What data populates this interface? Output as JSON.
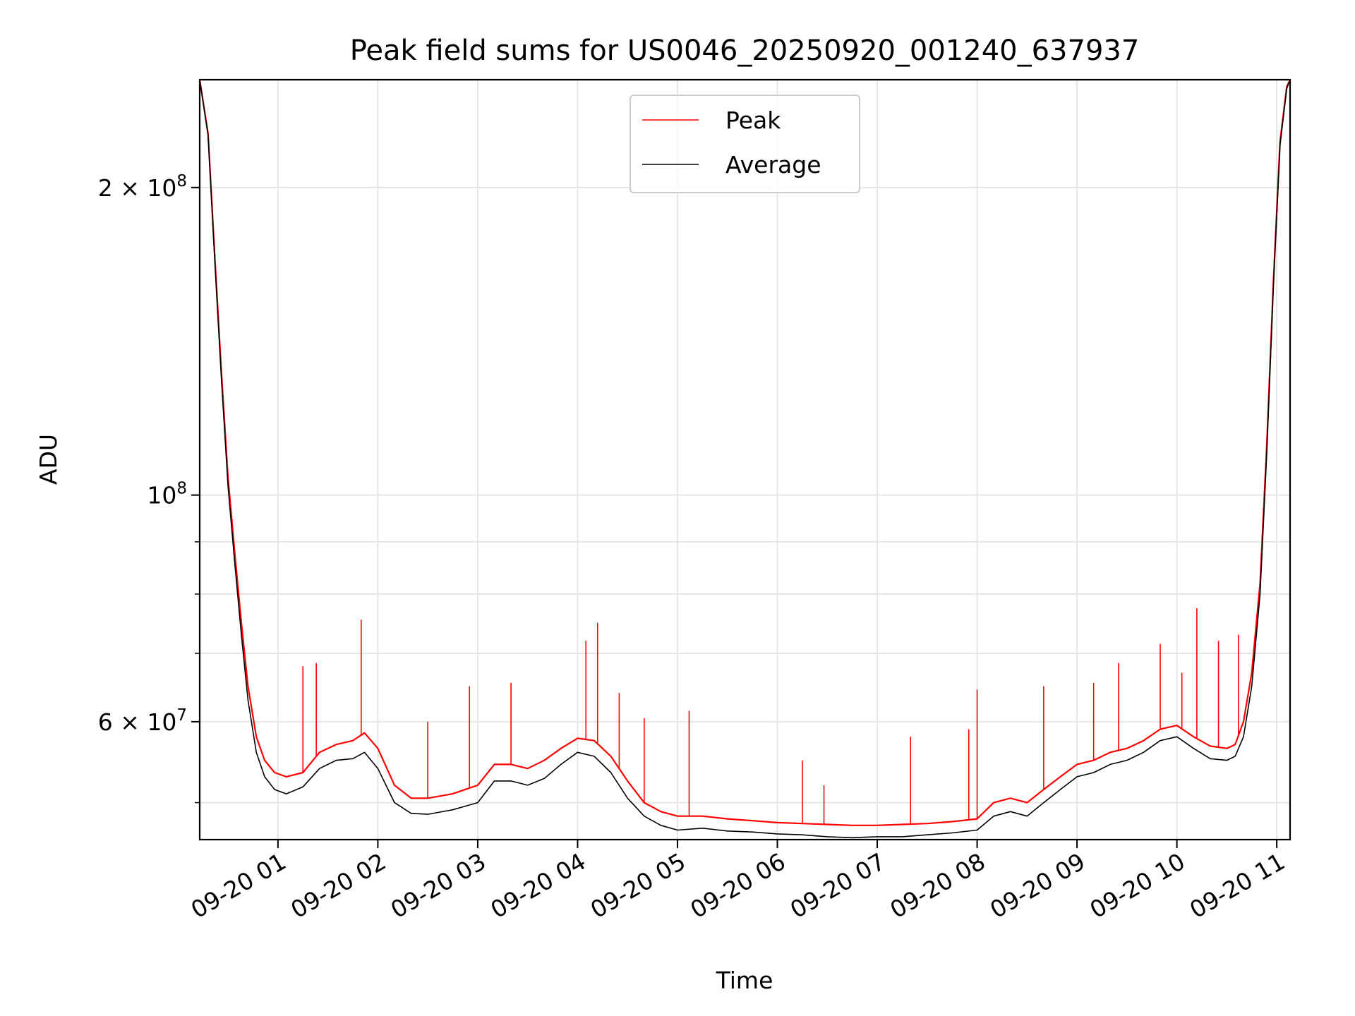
{
  "chart_data": {
    "type": "line",
    "title": "Peak field sums for US0046_20250920_001240_637937",
    "xlabel": "Time",
    "ylabel": "ADU",
    "y_scale": "log",
    "x_range": [
      "2025-09-20 00:13",
      "2025-09-20 11:08"
    ],
    "ylim": [
      46000000,
      255000000
    ],
    "x_ticks": [
      {
        "t": "2025-09-20 01:00",
        "label": "09-20 01"
      },
      {
        "t": "2025-09-20 02:00",
        "label": "09-20 02"
      },
      {
        "t": "2025-09-20 03:00",
        "label": "09-20 03"
      },
      {
        "t": "2025-09-20 04:00",
        "label": "09-20 04"
      },
      {
        "t": "2025-09-20 05:00",
        "label": "09-20 05"
      },
      {
        "t": "2025-09-20 06:00",
        "label": "09-20 06"
      },
      {
        "t": "2025-09-20 07:00",
        "label": "09-20 07"
      },
      {
        "t": "2025-09-20 08:00",
        "label": "09-20 08"
      },
      {
        "t": "2025-09-20 09:00",
        "label": "09-20 09"
      },
      {
        "t": "2025-09-20 10:00",
        "label": "09-20 10"
      },
      {
        "t": "2025-09-20 11:00",
        "label": "09-20 11"
      }
    ],
    "y_ticks": [
      {
        "v": 60000000,
        "base": "6 × 10",
        "exp": "7"
      },
      {
        "v": 100000000,
        "base": "10",
        "exp": "8"
      },
      {
        "v": 200000000,
        "base": "2 × 10",
        "exp": "8"
      }
    ],
    "y_minor_ticks": [
      50000000,
      70000000,
      80000000,
      90000000
    ],
    "grid": true,
    "legend_position": "top-center",
    "series": [
      {
        "name": "Average",
        "color": "#000000",
        "x": [
          "2025-09-20 00:13",
          "2025-09-20 00:18",
          "2025-09-20 00:22",
          "2025-09-20 00:26",
          "2025-09-20 00:30",
          "2025-09-20 00:34",
          "2025-09-20 00:38",
          "2025-09-20 00:42",
          "2025-09-20 00:47",
          "2025-09-20 00:52",
          "2025-09-20 00:58",
          "2025-09-20 01:05",
          "2025-09-20 01:15",
          "2025-09-20 01:25",
          "2025-09-20 01:35",
          "2025-09-20 01:45",
          "2025-09-20 01:52",
          "2025-09-20 02:00",
          "2025-09-20 02:10",
          "2025-09-20 02:20",
          "2025-09-20 02:30",
          "2025-09-20 02:45",
          "2025-09-20 03:00",
          "2025-09-20 03:10",
          "2025-09-20 03:20",
          "2025-09-20 03:30",
          "2025-09-20 03:40",
          "2025-09-20 03:50",
          "2025-09-20 04:00",
          "2025-09-20 04:10",
          "2025-09-20 04:20",
          "2025-09-20 04:30",
          "2025-09-20 04:40",
          "2025-09-20 04:50",
          "2025-09-20 05:00",
          "2025-09-20 05:15",
          "2025-09-20 05:30",
          "2025-09-20 05:45",
          "2025-09-20 06:00",
          "2025-09-20 06:15",
          "2025-09-20 06:30",
          "2025-09-20 06:45",
          "2025-09-20 07:00",
          "2025-09-20 07:15",
          "2025-09-20 07:30",
          "2025-09-20 07:45",
          "2025-09-20 08:00",
          "2025-09-20 08:10",
          "2025-09-20 08:20",
          "2025-09-20 08:30",
          "2025-09-20 08:40",
          "2025-09-20 08:50",
          "2025-09-20 09:00",
          "2025-09-20 09:10",
          "2025-09-20 09:20",
          "2025-09-20 09:30",
          "2025-09-20 09:40",
          "2025-09-20 09:50",
          "2025-09-20 10:00",
          "2025-09-20 10:10",
          "2025-09-20 10:20",
          "2025-09-20 10:30",
          "2025-09-20 10:35",
          "2025-09-20 10:40",
          "2025-09-20 10:45",
          "2025-09-20 10:50",
          "2025-09-20 10:54",
          "2025-09-20 10:58",
          "2025-09-20 11:02",
          "2025-09-20 11:06",
          "2025-09-20 11:08"
        ],
        "y": [
          255000000,
          225000000,
          170000000,
          130000000,
          102000000,
          86000000,
          73000000,
          63000000,
          56000000,
          53000000,
          51500000,
          51000000,
          51800000,
          54000000,
          55000000,
          55200000,
          56000000,
          54000000,
          50000000,
          48800000,
          48700000,
          49200000,
          50000000,
          52500000,
          52500000,
          52000000,
          52800000,
          54500000,
          56000000,
          55500000,
          53500000,
          50500000,
          48500000,
          47500000,
          47000000,
          47200000,
          46900000,
          46800000,
          46600000,
          46500000,
          46300000,
          46200000,
          46300000,
          46300000,
          46500000,
          46700000,
          47000000,
          48500000,
          49000000,
          48500000,
          50000000,
          51500000,
          53000000,
          53500000,
          54500000,
          55000000,
          56000000,
          57500000,
          58000000,
          56500000,
          55200000,
          55000000,
          55500000,
          58000000,
          65000000,
          80000000,
          110000000,
          160000000,
          220000000,
          250000000,
          255000000
        ]
      },
      {
        "name": "Peak",
        "color": "#ff0000",
        "x": [
          "2025-09-20 00:13",
          "2025-09-20 00:18",
          "2025-09-20 00:22",
          "2025-09-20 00:26",
          "2025-09-20 00:30",
          "2025-09-20 00:34",
          "2025-09-20 00:38",
          "2025-09-20 00:42",
          "2025-09-20 00:47",
          "2025-09-20 00:52",
          "2025-09-20 00:58",
          "2025-09-20 01:05",
          "2025-09-20 01:15",
          "2025-09-20 01:25",
          "2025-09-20 01:35",
          "2025-09-20 01:45",
          "2025-09-20 01:52",
          "2025-09-20 02:00",
          "2025-09-20 02:10",
          "2025-09-20 02:20",
          "2025-09-20 02:30",
          "2025-09-20 02:45",
          "2025-09-20 03:00",
          "2025-09-20 03:10",
          "2025-09-20 03:20",
          "2025-09-20 03:30",
          "2025-09-20 03:40",
          "2025-09-20 03:50",
          "2025-09-20 04:00",
          "2025-09-20 04:10",
          "2025-09-20 04:20",
          "2025-09-20 04:30",
          "2025-09-20 04:40",
          "2025-09-20 04:50",
          "2025-09-20 05:00",
          "2025-09-20 05:15",
          "2025-09-20 05:30",
          "2025-09-20 05:45",
          "2025-09-20 06:00",
          "2025-09-20 06:15",
          "2025-09-20 06:30",
          "2025-09-20 06:45",
          "2025-09-20 07:00",
          "2025-09-20 07:15",
          "2025-09-20 07:30",
          "2025-09-20 07:45",
          "2025-09-20 08:00",
          "2025-09-20 08:10",
          "2025-09-20 08:20",
          "2025-09-20 08:30",
          "2025-09-20 08:40",
          "2025-09-20 08:50",
          "2025-09-20 09:00",
          "2025-09-20 09:10",
          "2025-09-20 09:20",
          "2025-09-20 09:30",
          "2025-09-20 09:40",
          "2025-09-20 09:50",
          "2025-09-20 10:00",
          "2025-09-20 10:10",
          "2025-09-20 10:20",
          "2025-09-20 10:30",
          "2025-09-20 10:35",
          "2025-09-20 10:40",
          "2025-09-20 10:45",
          "2025-09-20 10:50",
          "2025-09-20 10:54",
          "2025-09-20 10:58",
          "2025-09-20 11:02",
          "2025-09-20 11:06",
          "2025-09-20 11:08"
        ],
        "y": [
          255000000,
          226000000,
          172000000,
          132000000,
          104000000,
          88000000,
          75000000,
          65000000,
          58000000,
          55000000,
          53500000,
          53000000,
          53500000,
          56000000,
          57000000,
          57500000,
          58500000,
          56500000,
          52000000,
          50500000,
          50500000,
          51000000,
          52000000,
          54500000,
          54500000,
          54000000,
          55000000,
          56500000,
          57800000,
          57500000,
          55500000,
          52500000,
          50000000,
          49000000,
          48500000,
          48500000,
          48200000,
          48000000,
          47800000,
          47700000,
          47600000,
          47500000,
          47500000,
          47600000,
          47700000,
          47900000,
          48200000,
          50000000,
          50500000,
          50000000,
          51500000,
          53000000,
          54500000,
          55000000,
          56000000,
          56500000,
          57500000,
          59000000,
          59500000,
          58000000,
          56800000,
          56500000,
          57000000,
          60000000,
          67000000,
          82000000,
          112000000,
          162000000,
          222000000,
          251000000,
          255000000
        ],
        "spikes": [
          [
            "2025-09-20 01:15",
            68000000
          ],
          [
            "2025-09-20 01:23",
            68500000
          ],
          [
            "2025-09-20 01:50",
            75500000
          ],
          [
            "2025-09-20 02:30",
            60000000
          ],
          [
            "2025-09-20 02:55",
            65000000
          ],
          [
            "2025-09-20 03:20",
            65500000
          ],
          [
            "2025-09-20 04:05",
            72000000
          ],
          [
            "2025-09-20 04:12",
            75000000
          ],
          [
            "2025-09-20 04:25",
            64000000
          ],
          [
            "2025-09-20 04:40",
            60500000
          ],
          [
            "2025-09-20 05:07",
            61500000
          ],
          [
            "2025-09-20 06:15",
            55000000
          ],
          [
            "2025-09-20 06:28",
            52000000
          ],
          [
            "2025-09-20 07:20",
            58000000
          ],
          [
            "2025-09-20 07:55",
            59000000
          ],
          [
            "2025-09-20 08:00",
            64500000
          ],
          [
            "2025-09-20 08:40",
            65000000
          ],
          [
            "2025-09-20 09:10",
            65500000
          ],
          [
            "2025-09-20 09:25",
            68500000
          ],
          [
            "2025-09-20 09:50",
            71500000
          ],
          [
            "2025-09-20 10:03",
            67000000
          ],
          [
            "2025-09-20 10:12",
            77500000
          ],
          [
            "2025-09-20 10:25",
            72000000
          ],
          [
            "2025-09-20 10:37",
            73000000
          ]
        ]
      }
    ]
  }
}
